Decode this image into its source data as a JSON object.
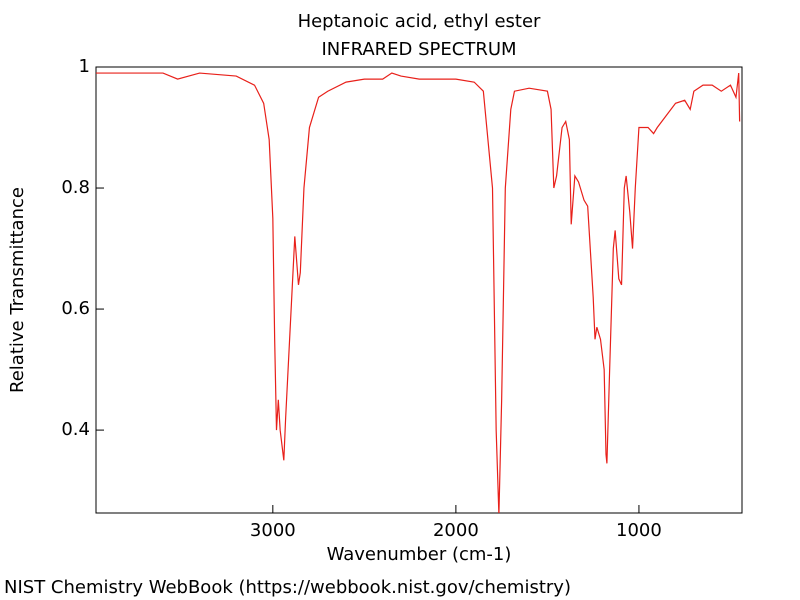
{
  "chart_data": {
    "type": "line",
    "title": "Heptanoic acid, ethyl ester",
    "subtitle": "INFRARED SPECTRUM",
    "x_label": "Wavenumber (cm-1)",
    "y_label": "Relative Transmittance",
    "color": "#e8201a",
    "x_reversed": true,
    "xlim": [
      3966,
      437
    ],
    "ylim": [
      0.263,
      1
    ],
    "xticks": [
      3000,
      2000,
      1000
    ],
    "yticks": [
      0.4,
      0.6,
      0.8,
      1
    ],
    "x": [
      3966,
      3800,
      3600,
      3520,
      3400,
      3200,
      3100,
      3050,
      3020,
      3000,
      2990,
      2980,
      2970,
      2960,
      2940,
      2930,
      2900,
      2880,
      2870,
      2860,
      2850,
      2830,
      2800,
      2750,
      2700,
      2600,
      2500,
      2400,
      2350,
      2300,
      2200,
      2000,
      1900,
      1850,
      1800,
      1780,
      1765,
      1750,
      1730,
      1700,
      1680,
      1600,
      1500,
      1480,
      1465,
      1450,
      1420,
      1400,
      1380,
      1370,
      1350,
      1330,
      1300,
      1280,
      1250,
      1240,
      1230,
      1210,
      1190,
      1180,
      1175,
      1160,
      1140,
      1130,
      1110,
      1095,
      1080,
      1070,
      1050,
      1035,
      1020,
      1000,
      950,
      920,
      900,
      850,
      800,
      750,
      720,
      700,
      650,
      600,
      550,
      500,
      470,
      455,
      450
    ],
    "values": [
      0.99,
      0.99,
      0.99,
      0.98,
      0.99,
      0.985,
      0.97,
      0.94,
      0.88,
      0.75,
      0.55,
      0.4,
      0.45,
      0.4,
      0.35,
      0.42,
      0.6,
      0.72,
      0.68,
      0.64,
      0.66,
      0.8,
      0.9,
      0.95,
      0.96,
      0.975,
      0.98,
      0.98,
      0.99,
      0.985,
      0.98,
      0.98,
      0.975,
      0.96,
      0.8,
      0.4,
      0.26,
      0.45,
      0.8,
      0.93,
      0.96,
      0.965,
      0.96,
      0.93,
      0.8,
      0.82,
      0.9,
      0.91,
      0.88,
      0.74,
      0.82,
      0.81,
      0.78,
      0.77,
      0.62,
      0.55,
      0.57,
      0.55,
      0.5,
      0.36,
      0.345,
      0.5,
      0.7,
      0.73,
      0.65,
      0.64,
      0.8,
      0.82,
      0.76,
      0.7,
      0.8,
      0.9,
      0.9,
      0.89,
      0.9,
      0.92,
      0.94,
      0.945,
      0.93,
      0.96,
      0.97,
      0.97,
      0.96,
      0.97,
      0.95,
      0.99,
      0.91
    ]
  },
  "footer": "NIST Chemistry WebBook (https://webbook.nist.gov/chemistry)"
}
